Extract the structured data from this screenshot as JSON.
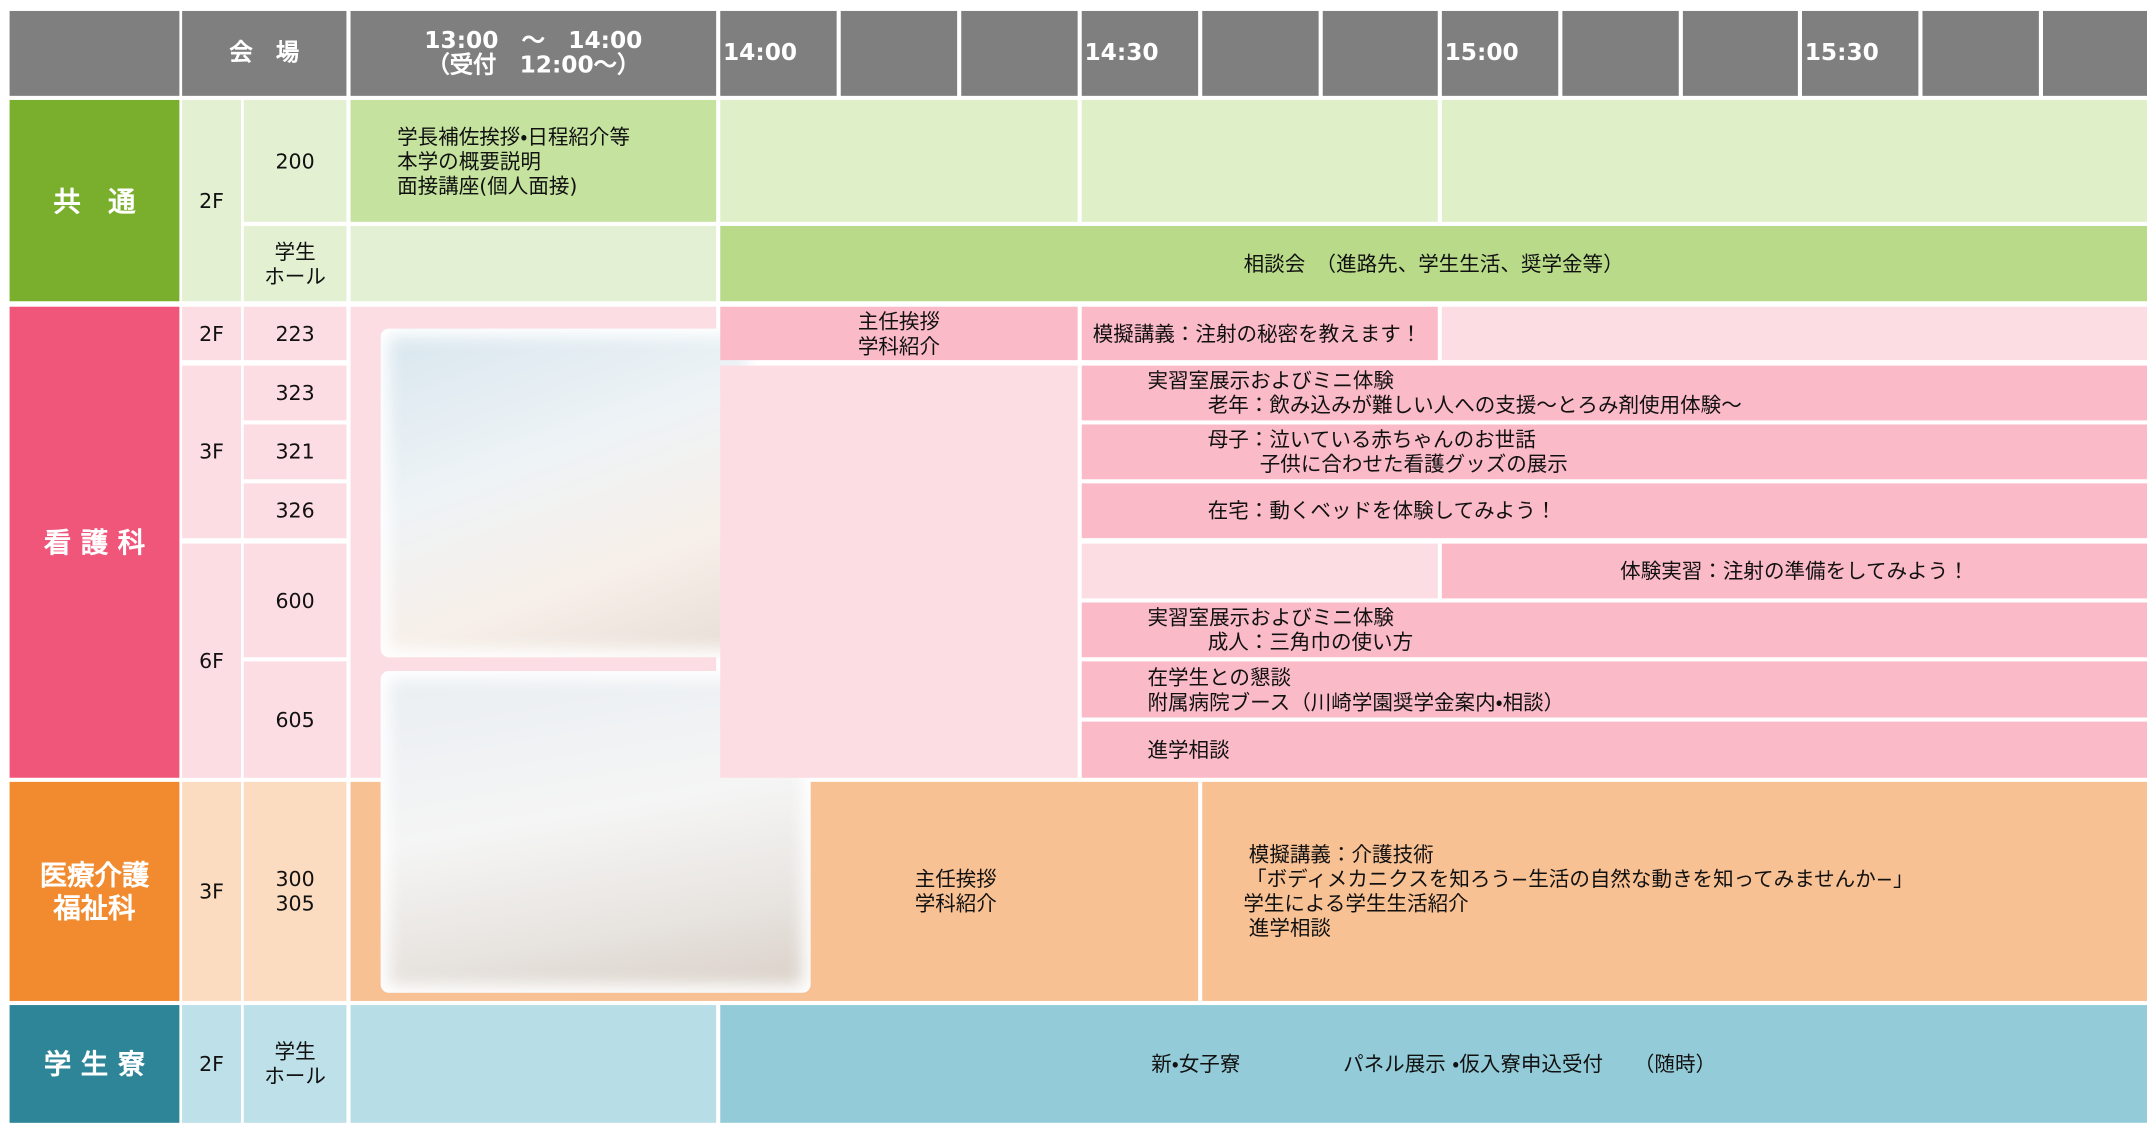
{
  "header": {
    "venue": "会　場",
    "first_slot": "13:00　～　14:00",
    "reception": "（受付　12:00～）",
    "times": [
      "14:00",
      "14:30",
      "15:00",
      "15:30"
    ]
  },
  "common": {
    "name": "共　通",
    "floor": "2F",
    "rooms": [
      [
        "200"
      ],
      [
        "学生",
        "ホール"
      ]
    ],
    "intro": [
      "学長補佐挨拶・日程紹介等",
      "本学の概要説明",
      "面接講座(個人面接)"
    ],
    "consult": "相談会　（進路先、学生生活、奨学金等）"
  },
  "nursing": {
    "name": "看 護 科",
    "floors": [
      "2F",
      "3F",
      "6F"
    ],
    "rooms": [
      "223",
      "323",
      "321",
      "326",
      "600",
      "605"
    ],
    "greeting": [
      "主任挨拶",
      "学科紹介"
    ],
    "events": [
      [
        "模擬講義：注射の秘密を教えます！"
      ],
      [
        "実習室展示およびミニ体験",
        "老年：飲み込みが難しい人への支援～とろみ剤使用体験～"
      ],
      [
        "母子：泣いている赤ちゃんのお世話",
        "子供に合わせた看護グッズの展示"
      ],
      [
        "在宅：動くベッドを体験してみよう！"
      ],
      [
        "体験実習：注射の準備をしてみよう！"
      ],
      [
        "実習室展示およびミニ体験",
        "成人：三角巾の使い方"
      ],
      [
        "在学生との懇談",
        "附属病院ブース（川崎学園奨学金案内・相談）"
      ],
      [
        "進学相談"
      ]
    ]
  },
  "welfare": {
    "name": [
      "医療介護",
      "福祉科"
    ],
    "floor": "3F",
    "rooms": [
      "300",
      "305"
    ],
    "greeting": [
      "主任挨拶",
      "学科紹介"
    ],
    "events": [
      "模擬講義：介護技術",
      "「ボディメカニクスを知ろう−生活の自然な動きを知ってみませんか−」",
      "学生による学生生活紹介",
      "進学相談"
    ]
  },
  "dorm": {
    "name": "学 生 寮",
    "floor": "2F",
    "room": [
      "学生",
      "ホール"
    ],
    "event": "新・女子寮　　　　　パネル展示 ・仮入寮申込受付　　（随時）"
  }
}
